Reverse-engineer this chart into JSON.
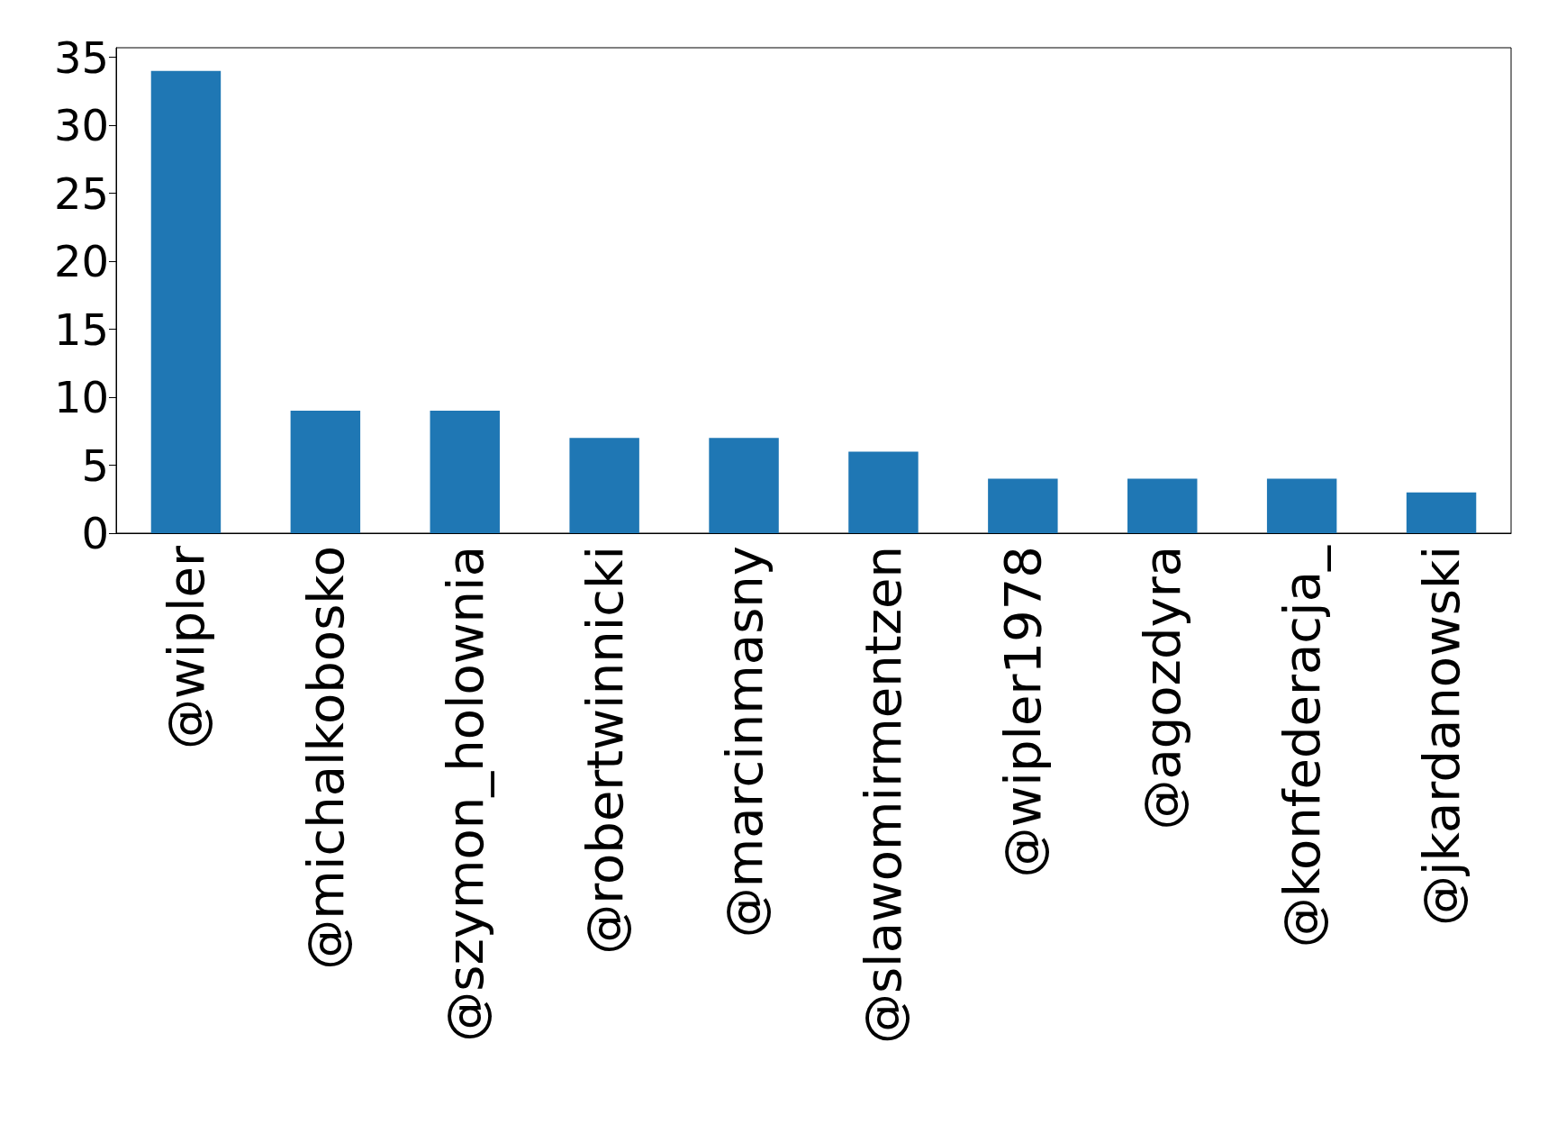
{
  "chart_data": {
    "type": "bar",
    "categories": [
      "@wipler",
      "@michalkobosko",
      "@szymon_holownia",
      "@robertwinnicki",
      "@marcinmasny",
      "@slawomirmentzen",
      "@wipler1978",
      "@agozdyra",
      "@konfederacja_",
      "@jkardanowski"
    ],
    "values": [
      34,
      9,
      9,
      7,
      7,
      6,
      4,
      4,
      4,
      3
    ],
    "color": "#1f77b4",
    "ylim": [
      0,
      35.7
    ],
    "yticks": [
      0,
      5,
      10,
      15,
      20,
      25,
      30,
      35
    ],
    "grid": false
  }
}
